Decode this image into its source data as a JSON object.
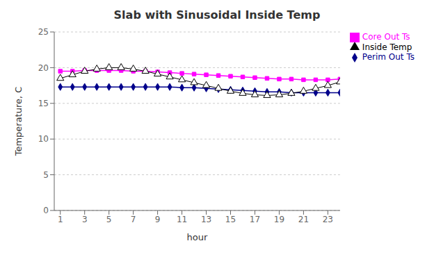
{
  "chart_data": {
    "type": "line",
    "title": "Slab with Sinusoidal Inside Temp",
    "xlabel": "hour",
    "ylabel": "Temperature, C",
    "x": [
      1,
      2,
      3,
      4,
      5,
      6,
      7,
      8,
      9,
      10,
      11,
      12,
      13,
      14,
      15,
      16,
      17,
      18,
      19,
      20,
      21,
      22,
      23,
      24
    ],
    "series": [
      {
        "name": "Perim Out Ts",
        "color": "#00008B",
        "marker": "diamond",
        "line_style": "solid",
        "values": [
          17.3,
          17.3,
          17.3,
          17.3,
          17.3,
          17.3,
          17.3,
          17.3,
          17.3,
          17.3,
          17.2,
          17.2,
          17.1,
          17.0,
          16.9,
          16.8,
          16.7,
          16.6,
          16.6,
          16.5,
          16.5,
          16.5,
          16.5,
          16.5
        ]
      },
      {
        "name": "Core Out Ts",
        "color": "#FF00FF",
        "marker": "square",
        "line_style": "solid",
        "values": [
          19.5,
          19.5,
          19.6,
          19.6,
          19.6,
          19.6,
          19.5,
          19.5,
          19.4,
          19.3,
          19.2,
          19.1,
          19.0,
          18.9,
          18.8,
          18.7,
          18.6,
          18.5,
          18.4,
          18.4,
          18.3,
          18.3,
          18.3,
          18.4
        ]
      },
      {
        "name": "Inside Temp",
        "color": "#000000",
        "marker": "triangle",
        "line_style": "solid",
        "values": [
          18.5,
          19.0,
          19.5,
          19.8,
          20.0,
          20.0,
          19.8,
          19.5,
          19.1,
          18.7,
          18.3,
          17.9,
          17.5,
          17.1,
          16.7,
          16.4,
          16.2,
          16.1,
          16.2,
          16.4,
          16.7,
          17.1,
          17.5,
          18.0
        ]
      }
    ],
    "xlim": [
      0.5,
      24.0
    ],
    "xticks": [
      1,
      3,
      5,
      7,
      9,
      11,
      13,
      15,
      17,
      19,
      21,
      23
    ],
    "ylim": [
      0,
      25
    ],
    "yticks": [
      0,
      5,
      10,
      15,
      20,
      25
    ],
    "grid": true,
    "legend": "right"
  }
}
